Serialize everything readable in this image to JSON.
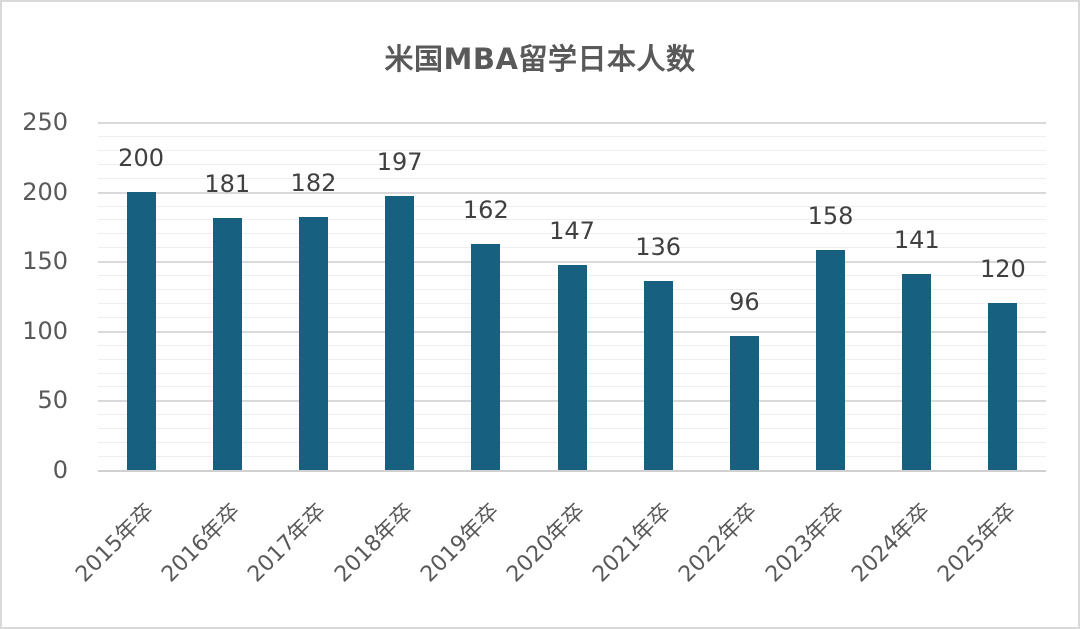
{
  "chart_data": {
    "type": "bar",
    "title": "米国MBA留学日本人数",
    "xlabel": "",
    "ylabel": "",
    "ylim": [
      0,
      250
    ],
    "yticks": [
      0,
      50,
      100,
      150,
      200,
      250
    ],
    "grid": {
      "major_step": 50,
      "minor_step": 10
    },
    "legend": null,
    "bar_color": "#17607f",
    "categories": [
      "2015年卒",
      "2016年卒",
      "2017年卒",
      "2018年卒",
      "2019年卒",
      "2020年卒",
      "2021年卒",
      "2022年卒",
      "2023年卒",
      "2024年卒",
      "2025年卒"
    ],
    "values": [
      200,
      181,
      182,
      197,
      162,
      147,
      136,
      96,
      158,
      141,
      120
    ],
    "data_labels": [
      "200",
      "181",
      "182",
      "197",
      "162",
      "147",
      "136",
      "96",
      "158",
      "141",
      "120"
    ]
  }
}
